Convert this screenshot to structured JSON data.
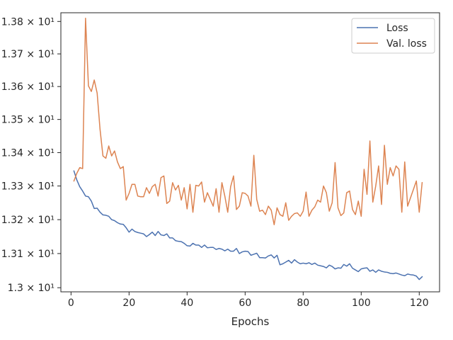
{
  "chart_data": {
    "type": "line",
    "title": "",
    "xlabel": "Epochs",
    "ylabel": "",
    "xlim": [
      -3.5,
      127
    ],
    "ylim": [
      12.988,
      13.827
    ],
    "y_scale": "log",
    "x_ticks": [
      0,
      20,
      40,
      60,
      80,
      100,
      120
    ],
    "x_tick_labels": [
      "0",
      "20",
      "40",
      "60",
      "80",
      "100",
      "120"
    ],
    "y_ticks": [
      13.0,
      13.1,
      13.2,
      13.3,
      13.4,
      13.5,
      13.6,
      13.7,
      13.8
    ],
    "y_tick_labels": [
      "1.3 × 10¹",
      "1.31 × 10¹",
      "1.32 × 10¹",
      "1.33 × 10¹",
      "1.34 × 10¹",
      "1.35 × 10¹",
      "1.36 × 10¹",
      "1.37 × 10¹",
      "1.38 × 10¹"
    ],
    "grid": false,
    "legend_position": "top-right",
    "series": [
      {
        "name": "Loss",
        "color": "#4c72b0",
        "x": [
          1,
          2,
          3,
          4,
          5,
          6,
          7,
          8,
          9,
          10,
          11,
          12,
          13,
          14,
          15,
          16,
          17,
          18,
          19,
          20,
          21,
          22,
          23,
          24,
          25,
          26,
          27,
          28,
          29,
          30,
          31,
          32,
          33,
          34,
          35,
          36,
          37,
          38,
          39,
          40,
          41,
          42,
          43,
          44,
          45,
          46,
          47,
          48,
          49,
          50,
          51,
          52,
          53,
          54,
          55,
          56,
          57,
          58,
          59,
          60,
          61,
          62,
          63,
          64,
          65,
          66,
          67,
          68,
          69,
          70,
          71,
          72,
          73,
          74,
          75,
          76,
          77,
          78,
          79,
          80,
          81,
          82,
          83,
          84,
          85,
          86,
          87,
          88,
          89,
          90,
          91,
          92,
          93,
          94,
          95,
          96,
          97,
          98,
          99,
          100,
          101,
          102,
          103,
          104,
          105,
          106,
          107,
          108,
          109,
          110,
          111,
          112,
          113,
          114,
          115,
          116,
          117,
          118,
          119,
          120,
          121
        ],
        "values": [
          13.345,
          13.318,
          13.298,
          13.285,
          13.27,
          13.268,
          13.255,
          13.233,
          13.234,
          13.222,
          13.214,
          13.213,
          13.21,
          13.2,
          13.197,
          13.191,
          13.187,
          13.186,
          13.176,
          13.163,
          13.172,
          13.165,
          13.162,
          13.16,
          13.158,
          13.15,
          13.156,
          13.163,
          13.153,
          13.165,
          13.155,
          13.153,
          13.158,
          13.146,
          13.146,
          13.138,
          13.136,
          13.135,
          13.13,
          13.123,
          13.122,
          13.13,
          13.125,
          13.125,
          13.118,
          13.125,
          13.117,
          13.118,
          13.118,
          13.112,
          13.115,
          13.113,
          13.108,
          13.113,
          13.107,
          13.107,
          13.115,
          13.1,
          13.105,
          13.107,
          13.106,
          13.095,
          13.098,
          13.101,
          13.088,
          13.088,
          13.087,
          13.093,
          13.096,
          13.087,
          13.095,
          13.067,
          13.07,
          13.075,
          13.08,
          13.072,
          13.082,
          13.075,
          13.07,
          13.072,
          13.07,
          13.073,
          13.068,
          13.072,
          13.066,
          13.064,
          13.062,
          13.058,
          13.066,
          13.062,
          13.055,
          13.058,
          13.057,
          13.068,
          13.063,
          13.07,
          13.057,
          13.052,
          13.047,
          13.055,
          13.057,
          13.058,
          13.048,
          13.052,
          13.045,
          13.052,
          13.048,
          13.046,
          13.045,
          13.042,
          13.041,
          13.043,
          13.04,
          13.037,
          13.035,
          13.04,
          13.038,
          13.037,
          13.034,
          13.024,
          13.032
        ]
      },
      {
        "name": "Val. loss",
        "color": "#dd8452",
        "x": [
          1,
          2,
          3,
          4,
          5,
          6,
          7,
          8,
          9,
          10,
          11,
          12,
          13,
          14,
          15,
          16,
          17,
          18,
          19,
          20,
          21,
          22,
          23,
          24,
          25,
          26,
          27,
          28,
          29,
          30,
          31,
          32,
          33,
          34,
          35,
          36,
          37,
          38,
          39,
          40,
          41,
          42,
          43,
          44,
          45,
          46,
          47,
          48,
          49,
          50,
          51,
          52,
          53,
          54,
          55,
          56,
          57,
          58,
          59,
          60,
          61,
          62,
          63,
          64,
          65,
          66,
          67,
          68,
          69,
          70,
          71,
          72,
          73,
          74,
          75,
          76,
          77,
          78,
          79,
          80,
          81,
          82,
          83,
          84,
          85,
          86,
          87,
          88,
          89,
          90,
          91,
          92,
          93,
          94,
          95,
          96,
          97,
          98,
          99,
          100,
          101,
          102,
          103,
          104,
          105,
          106,
          107,
          108,
          109,
          110,
          111,
          112,
          113,
          114,
          115,
          116,
          117,
          118,
          119,
          120,
          121
        ],
        "values": [
          13.315,
          13.338,
          13.355,
          13.352,
          13.81,
          13.602,
          13.585,
          13.62,
          13.58,
          13.47,
          13.39,
          13.383,
          13.42,
          13.39,
          13.405,
          13.372,
          13.352,
          13.358,
          13.258,
          13.278,
          13.305,
          13.305,
          13.27,
          13.268,
          13.268,
          13.295,
          13.278,
          13.298,
          13.305,
          13.27,
          13.325,
          13.33,
          13.248,
          13.255,
          13.31,
          13.288,
          13.302,
          13.258,
          13.295,
          13.232,
          13.305,
          13.222,
          13.302,
          13.3,
          13.312,
          13.252,
          13.28,
          13.26,
          13.24,
          13.292,
          13.222,
          13.31,
          13.27,
          13.222,
          13.298,
          13.33,
          13.23,
          13.24,
          13.28,
          13.278,
          13.27,
          13.24,
          13.392,
          13.26,
          13.225,
          13.228,
          13.215,
          13.24,
          13.228,
          13.185,
          13.235,
          13.215,
          13.21,
          13.25,
          13.198,
          13.21,
          13.218,
          13.22,
          13.21,
          13.225,
          13.282,
          13.21,
          13.228,
          13.238,
          13.258,
          13.252,
          13.3,
          13.28,
          13.225,
          13.25,
          13.37,
          13.235,
          13.212,
          13.22,
          13.28,
          13.285,
          13.23,
          13.215,
          13.255,
          13.21,
          13.35,
          13.275,
          13.435,
          13.252,
          13.3,
          13.36,
          13.245,
          13.422,
          13.305,
          13.355,
          13.33,
          13.36,
          13.35,
          13.222,
          13.372,
          13.24,
          13.265,
          13.29,
          13.315,
          13.222,
          13.31
        ]
      }
    ]
  }
}
